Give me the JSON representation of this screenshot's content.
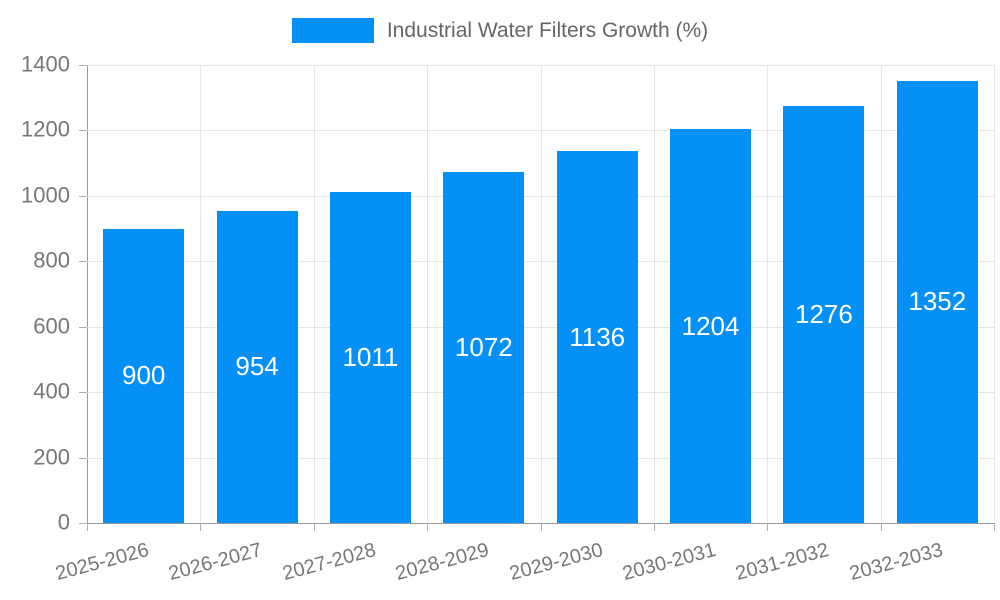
{
  "chart_data": {
    "type": "bar",
    "title": "Industrial Water Filters Growth (%)",
    "legend_entries": [
      "Industrial Water Filters Growth (%)"
    ],
    "legend_position": "top",
    "categories": [
      "2025-2026",
      "2026-2027",
      "2027-2028",
      "2028-2029",
      "2029-2030",
      "2030-2031",
      "2031-2032",
      "2032-2033"
    ],
    "values": [
      900,
      954,
      1011,
      1072,
      1136,
      1204,
      1276,
      1352
    ],
    "value_labels_visible": true,
    "xlabel": "",
    "ylabel": "",
    "ylim": [
      0,
      1400
    ],
    "ytick_step": 200,
    "ytick_labels": [
      "0",
      "200",
      "400",
      "600",
      "800",
      "1000",
      "1200",
      "1400"
    ],
    "grid": true,
    "x_tick_rotation_deg": -15,
    "colors": {
      "bar": "#0590f8",
      "bar_value_label": "#ffffff",
      "gridline": "#e5e5e5",
      "axis_line": "#999999",
      "tick_mark": "#b0b0b0",
      "tick_text": "#777777",
      "legend_text": "#666666",
      "background": "#ffffff"
    }
  }
}
